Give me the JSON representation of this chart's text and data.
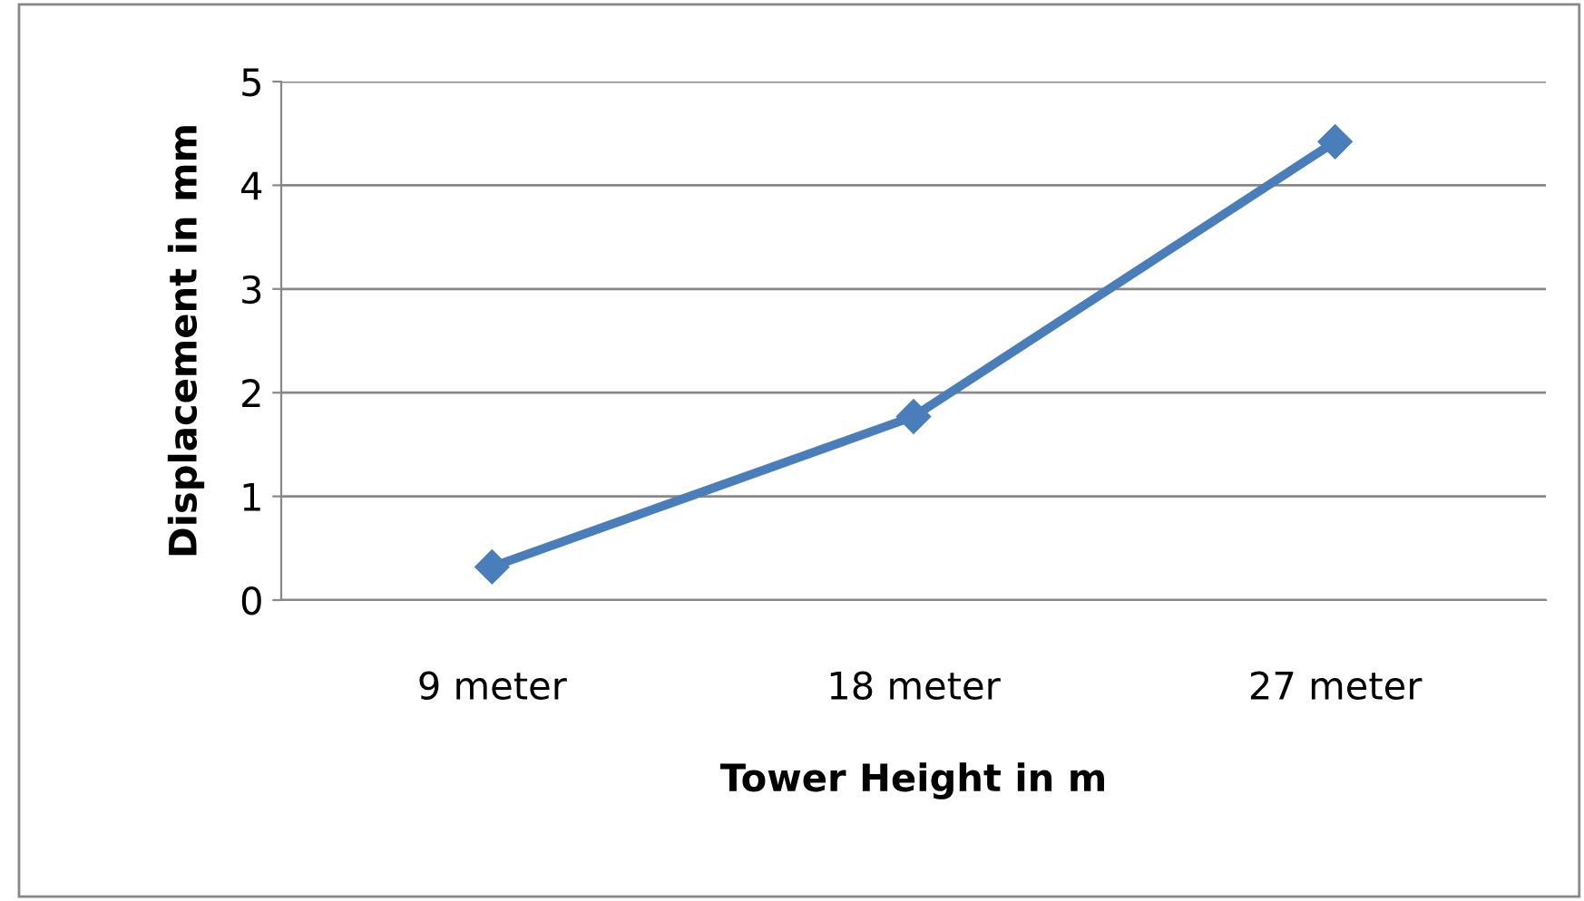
{
  "chart_data": {
    "type": "line",
    "xlabel": "Tower Height in m",
    "ylabel": "Displacement in mm",
    "categories": [
      "9 meter",
      "18 meter",
      "27 meter"
    ],
    "series": [
      {
        "color": "#4a7ebb",
        "values": [
          0.32,
          1.77,
          4.42
        ]
      }
    ],
    "ylim": [
      0,
      5
    ],
    "yticks": [
      0,
      1,
      2,
      3,
      4,
      5
    ],
    "grid": "y",
    "marker": "diamond",
    "line_style": "solid"
  }
}
